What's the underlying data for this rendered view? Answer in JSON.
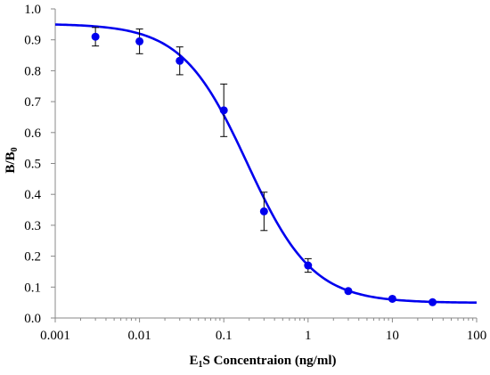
{
  "chart_data": {
    "type": "scatter",
    "title": "",
    "xlabel": {
      "main": "E",
      "sub": "1",
      "rest": "S Concentraion (ng/ml)"
    },
    "ylabel": {
      "main": "B/B",
      "sub": "0"
    },
    "xscale": "log",
    "xlim": [
      0.001,
      100
    ],
    "ylim": [
      0,
      1.0
    ],
    "x_ticks": [
      0.001,
      0.01,
      0.1,
      1,
      10,
      100
    ],
    "x_tick_labels": [
      "0.001",
      "0.01",
      "0.1",
      "1",
      "10",
      "100"
    ],
    "y_ticks": [
      0,
      0.1,
      0.2,
      0.3,
      0.4,
      0.5,
      0.6,
      0.7,
      0.8,
      0.9,
      1.0
    ],
    "y_tick_labels": [
      "0.0",
      "0.1",
      "0.2",
      "0.3",
      "0.4",
      "0.5",
      "0.6",
      "0.7",
      "0.8",
      "0.9",
      "1.0"
    ],
    "grid": false,
    "legend": "none",
    "points": [
      {
        "x": 0.003,
        "y": 0.91,
        "err": 0.03
      },
      {
        "x": 0.01,
        "y": 0.895,
        "err": 0.04
      },
      {
        "x": 0.03,
        "y": 0.832,
        "err": 0.045
      },
      {
        "x": 0.1,
        "y": 0.672,
        "err": 0.085
      },
      {
        "x": 0.3,
        "y": 0.345,
        "err": 0.062
      },
      {
        "x": 1,
        "y": 0.17,
        "err": 0.022
      },
      {
        "x": 3,
        "y": 0.087,
        "err": 0.005
      },
      {
        "x": 10,
        "y": 0.062,
        "err": 0.004
      },
      {
        "x": 30,
        "y": 0.051,
        "err": 0.003
      }
    ],
    "fit_curve": {
      "model": "four-parameter logistic",
      "top": 0.952,
      "bottom": 0.049,
      "ec50": 0.19,
      "hill_slope": 1.12
    },
    "colors": {
      "series": "#0000ee",
      "axis": "#888888",
      "error_bar": "#000000"
    }
  }
}
